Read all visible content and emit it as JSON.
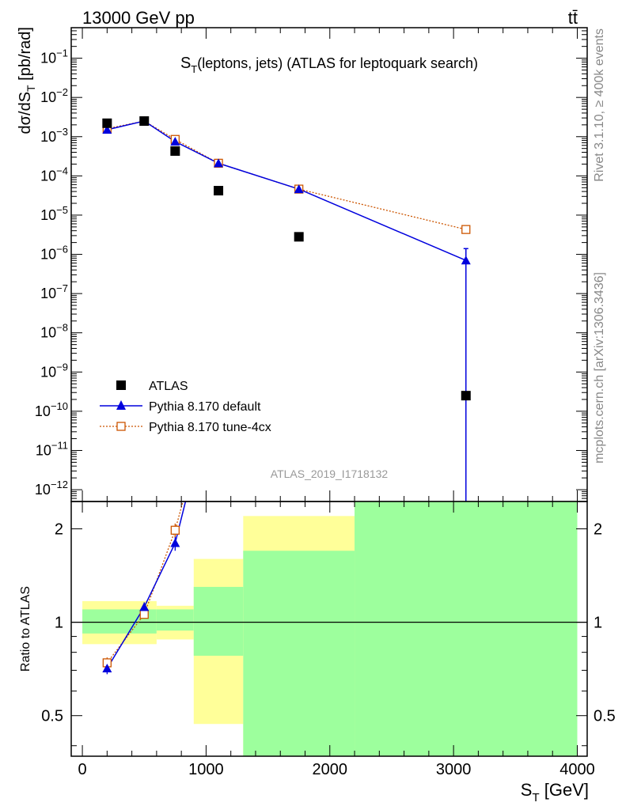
{
  "header": {
    "energy_label": "13000 GeV pp",
    "process_label": "tt̄"
  },
  "side": {
    "rivet_label": "Rivet 3.1.10, ≥ 400k events",
    "mcplots_label": "mcplots.cern.ch [arXiv:1306.3436]"
  },
  "analysis_id": "ATLAS_2019_I1718132",
  "colors": {
    "data": "#000000",
    "default": "#0000dd",
    "tune": "#cc5500",
    "band_inner": "#9dff9d",
    "band_outer": "#ffff99"
  },
  "chart_data": [
    {
      "type": "scatter",
      "title_main": "S",
      "title_sub": "T",
      "title_rest": "(leptons, jets) (ATLAS for leptoquark search)",
      "ylabel": "dσ/dS_T [pb/rad]",
      "yscale": "log",
      "ylim": [
        5e-13,
        0.6
      ],
      "xlim": [
        -90,
        4080
      ],
      "legend_position": "bottom-left",
      "series": [
        {
          "name": "ATLAS",
          "marker": "square",
          "x": [
            200,
            500,
            750,
            1100,
            1750,
            3100
          ],
          "y": [
            0.0022,
            0.0025,
            0.00043,
            4.2e-05,
            2.8e-06,
            2.5e-10
          ]
        },
        {
          "name": "Pythia 8.170 default",
          "marker": "triangle",
          "x": [
            200,
            500,
            750,
            1100,
            1750,
            3100
          ],
          "y": [
            0.0015,
            0.0025,
            0.00075,
            0.00021,
            4.6e-05,
            7e-07
          ],
          "err_low": [
            0,
            0,
            0,
            0,
            0,
            7e-07
          ],
          "err_high": [
            0,
            0,
            0,
            0,
            0,
            7e-07
          ]
        },
        {
          "name": "Pythia 8.170 tune-4cx",
          "marker": "open-square",
          "x": [
            200,
            500,
            750,
            1100,
            1750,
            3100
          ],
          "y": [
            0.0016,
            0.0025,
            0.00085,
            0.00021,
            4.6e-05,
            4.3e-06
          ]
        }
      ],
      "y_ticks": [
        {
          "v": 1e-12,
          "b": "10",
          "e": "−12"
        },
        {
          "v": 1e-11,
          "b": "10",
          "e": "−11"
        },
        {
          "v": 1e-10,
          "b": "10",
          "e": "−10"
        },
        {
          "v": 1e-09,
          "b": "10",
          "e": "−9"
        },
        {
          "v": 1e-08,
          "b": "10",
          "e": "−8"
        },
        {
          "v": 1e-07,
          "b": "10",
          "e": "−7"
        },
        {
          "v": 1e-06,
          "b": "10",
          "e": "−6"
        },
        {
          "v": 1e-05,
          "b": "10",
          "e": "−5"
        },
        {
          "v": 0.0001,
          "b": "10",
          "e": "−4"
        },
        {
          "v": 0.001,
          "b": "10",
          "e": "−3"
        },
        {
          "v": 0.01,
          "b": "10",
          "e": "−2"
        },
        {
          "v": 0.1,
          "b": "10",
          "e": "−1"
        }
      ]
    },
    {
      "type": "scatter",
      "ylabel": "Ratio to ATLAS",
      "yscale": "log",
      "ylim": [
        0.37,
        2.45
      ],
      "xlim": [
        -90,
        4080
      ],
      "xlabel": "S_T [GeV]",
      "x_ticks": [
        0,
        1000,
        2000,
        3000,
        4000
      ],
      "x_tick_labels": [
        "0",
        "1000",
        "2000",
        "3000",
        "4000"
      ],
      "y_ticks": [
        0.5,
        1,
        2
      ],
      "y_tick_labels": [
        "0.5",
        "1",
        "2"
      ],
      "bands": [
        {
          "x0": 0,
          "x1": 600,
          "inner": [
            0.92,
            1.1
          ],
          "outer": [
            0.85,
            1.17
          ]
        },
        {
          "x0": 600,
          "x1": 900,
          "inner": [
            0.94,
            1.1
          ],
          "outer": [
            0.88,
            1.13
          ]
        },
        {
          "x0": 900,
          "x1": 1300,
          "inner": [
            0.78,
            1.3
          ],
          "outer": [
            0.47,
            1.6
          ]
        },
        {
          "x0": 1300,
          "x1": 2200,
          "inner": [
            0.3,
            1.7
          ],
          "outer": [
            0.3,
            2.2
          ]
        },
        {
          "x0": 2200,
          "x1": 4000,
          "inner": [
            0.3,
            2.45
          ],
          "outer": [
            0.3,
            2.45
          ]
        }
      ],
      "series": [
        {
          "name": "Pythia 8.170 default",
          "x": [
            200,
            500,
            750,
            850
          ],
          "y": [
            0.71,
            1.12,
            1.8,
            2.6
          ],
          "err": [
            0.03,
            0.04,
            0.1,
            0
          ]
        },
        {
          "name": "Pythia 8.170 tune-4cx",
          "x": [
            200,
            500,
            750,
            830
          ],
          "y": [
            0.74,
            1.06,
            1.98,
            2.6
          ],
          "err": [
            0.03,
            0.03,
            0.1,
            0
          ]
        }
      ]
    }
  ]
}
